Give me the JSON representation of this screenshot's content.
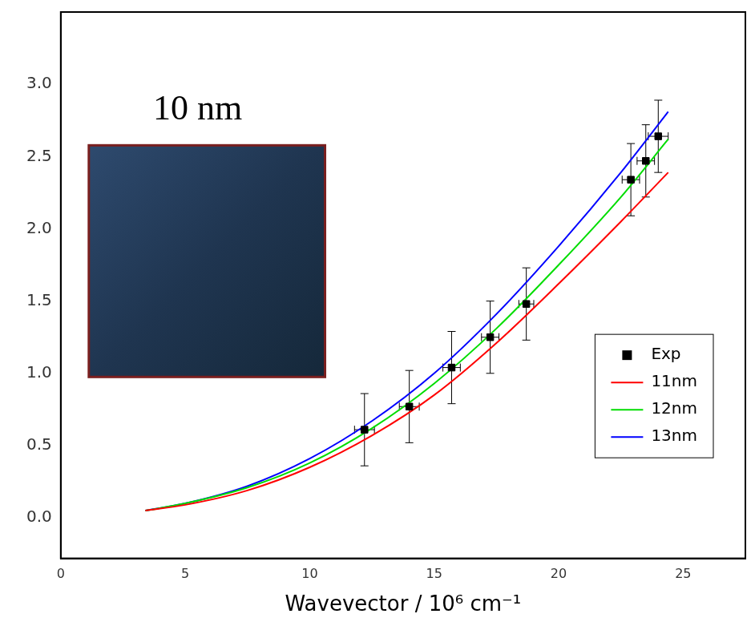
{
  "chart_data": {
    "type": "scatter",
    "title": "10 nm",
    "x_label": "Wavevector / 10⁶ cm⁻¹",
    "xlim": [
      0,
      27.5
    ],
    "xticks": [
      0,
      5,
      10,
      15,
      20,
      25
    ],
    "ylim": [
      -0.28,
      3.5
    ],
    "yticks": [
      {
        "value": 0,
        "label": "0.0"
      },
      0.5,
      {
        "value": 1,
        "label": "1.0"
      },
      1.5,
      {
        "value": 2,
        "label": "2.0"
      },
      2.5,
      {
        "value": 3,
        "label": "3.0"
      }
    ],
    "grid": false,
    "legend": "lower right",
    "series": [
      {
        "name": "Exp",
        "type": "scatter",
        "marker": "square",
        "color": "#000000",
        "x": [
          12.2,
          14.0,
          15.7,
          17.25,
          18.7,
          22.9,
          23.5,
          24.0
        ],
        "values": [
          0.61,
          0.77,
          1.04,
          1.25,
          1.48,
          2.34,
          2.47,
          2.64
        ],
        "x_err": [
          0.4,
          0.4,
          0.35,
          0.35,
          0.3,
          0.35,
          0.35,
          0.4
        ],
        "y_err": [
          0.25,
          0.25,
          0.25,
          0.25,
          0.25,
          0.25,
          0.25,
          0.25
        ]
      },
      {
        "name": "11nm",
        "type": "line",
        "color": "#ff0000",
        "x": [
          3.4,
          5,
          7.5,
          10,
          12.5,
          15,
          17.5,
          20,
          22.5,
          24.4
        ],
        "values": [
          0.05,
          0.09,
          0.19,
          0.35,
          0.57,
          0.85,
          1.21,
          1.62,
          2.05,
          2.39
        ]
      },
      {
        "name": "12nm",
        "type": "line",
        "color": "#00dd00",
        "x": [
          3.4,
          5,
          7.5,
          10,
          12.5,
          15,
          17.5,
          20,
          22.5,
          24.4
        ],
        "values": [
          0.05,
          0.1,
          0.21,
          0.38,
          0.62,
          0.93,
          1.31,
          1.75,
          2.22,
          2.62
        ]
      },
      {
        "name": "13nm",
        "type": "line",
        "color": "#0000ff",
        "x": [
          3.4,
          5,
          7.5,
          10,
          12.5,
          15,
          17.5,
          20,
          22.5,
          24.4
        ],
        "values": [
          0.05,
          0.1,
          0.22,
          0.41,
          0.67,
          1.0,
          1.41,
          1.88,
          2.39,
          2.81
        ]
      }
    ]
  }
}
